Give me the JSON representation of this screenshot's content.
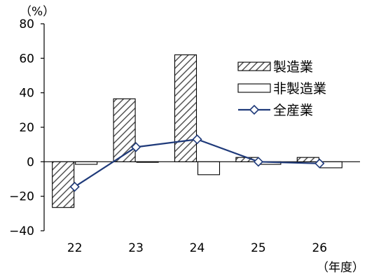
{
  "chart_data": {
    "type": "bar",
    "y_unit": "（%）",
    "x_unit": "（年度）",
    "categories": [
      "22",
      "23",
      "24",
      "25",
      "26"
    ],
    "ylim": [
      -40,
      80
    ],
    "yticks": [
      80,
      60,
      40,
      20,
      0,
      -20,
      -40
    ],
    "grid": false,
    "legend_position": "right",
    "series": [
      {
        "name": "製造業",
        "kind": "bar",
        "pattern": "hatched",
        "values": [
          -26.5,
          36.5,
          62.0,
          2.5,
          2.5
        ]
      },
      {
        "name": "非製造業",
        "kind": "bar",
        "pattern": "white",
        "values": [
          -1.5,
          0.0,
          -7.5,
          -1.5,
          -3.5
        ]
      },
      {
        "name": "全産業",
        "kind": "line",
        "marker": "diamond",
        "color": "#1f3a7a",
        "values": [
          -14.5,
          8.5,
          13.0,
          0.0,
          -1.0
        ]
      }
    ]
  }
}
